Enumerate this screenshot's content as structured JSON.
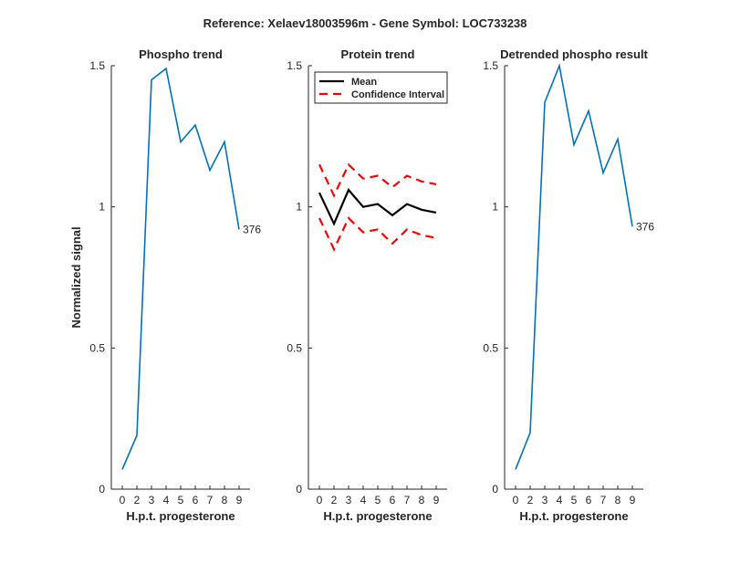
{
  "figure": {
    "suptitle": "Reference:  Xelaev18003596m - Gene Symbol:  LOC733238",
    "ylabel": "Normalized signal"
  },
  "chart_data": [
    {
      "type": "line",
      "title": "Phospho trend",
      "xlabel": "H.p.t. progesterone",
      "ylabel": "Normalized signal",
      "x_ticks": [
        "0",
        "2",
        "3",
        "4",
        "5",
        "6",
        "7",
        "8",
        "9"
      ],
      "y_ticks": [
        "0",
        "0.5",
        "1",
        "1.5"
      ],
      "ylim": [
        0,
        1.5
      ],
      "series": [
        {
          "values": [
            0.07,
            0.19,
            1.45,
            1.49,
            1.23,
            1.29,
            1.13,
            1.23,
            0.92
          ],
          "color": "#0072bd"
        }
      ],
      "annotation": {
        "text": "376",
        "point_index": 8
      }
    },
    {
      "type": "line",
      "title": "Protein trend",
      "xlabel": "H.p.t. progesterone",
      "x_ticks": [
        "0",
        "2",
        "3",
        "4",
        "5",
        "6",
        "7",
        "8",
        "9"
      ],
      "y_ticks": [
        "0",
        "0.5",
        "1",
        "1.5"
      ],
      "ylim": [
        0,
        1.5
      ],
      "series": [
        {
          "name": "Mean",
          "values": [
            1.05,
            0.94,
            1.06,
            1.0,
            1.01,
            0.97,
            1.01,
            0.99,
            0.98
          ],
          "color": "#000000",
          "style": "solid"
        },
        {
          "name": "Confidence Interval",
          "values": [
            1.15,
            1.04,
            1.15,
            1.1,
            1.11,
            1.07,
            1.11,
            1.09,
            1.08
          ],
          "color": "#ff0000",
          "style": "dashed"
        },
        {
          "name": "Confidence Interval lower",
          "values": [
            0.96,
            0.85,
            0.96,
            0.91,
            0.92,
            0.87,
            0.92,
            0.9,
            0.89
          ],
          "color": "#ff0000",
          "style": "dashed",
          "legend": false
        }
      ],
      "legend": {
        "placement": "top-left",
        "entries": [
          "Mean",
          "Confidence Interval"
        ]
      }
    },
    {
      "type": "line",
      "title": "Detrended phospho result",
      "xlabel": "H.p.t. progesterone",
      "x_ticks": [
        "0",
        "2",
        "3",
        "4",
        "5",
        "6",
        "7",
        "8",
        "9"
      ],
      "y_ticks": [
        "0",
        "0.5",
        "1",
        "1.5"
      ],
      "ylim": [
        0,
        1.5
      ],
      "series": [
        {
          "values": [
            0.07,
            0.2,
            1.37,
            1.5,
            1.22,
            1.34,
            1.12,
            1.24,
            0.93
          ],
          "color": "#0072bd"
        }
      ],
      "annotation": {
        "text": "376",
        "point_index": 8
      }
    }
  ]
}
